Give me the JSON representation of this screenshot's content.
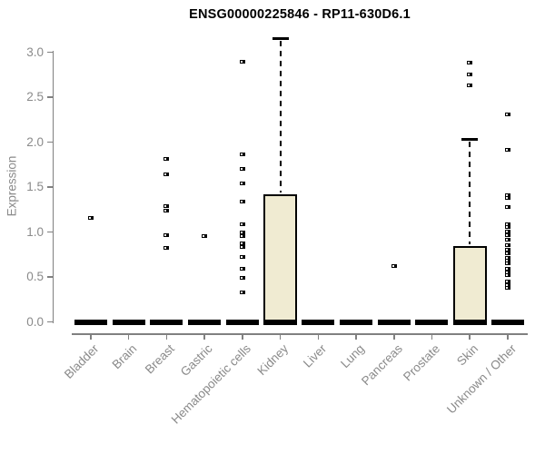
{
  "chart_data": {
    "type": "boxplot",
    "title": "ENSG00000225846 - RP11-630D6.1",
    "ylabel": "Expression",
    "xlabel": "",
    "ytick_labels": [
      "0.0",
      "0.5",
      "1.0",
      "1.5",
      "2.0",
      "2.5",
      "3.0"
    ],
    "ylim": [
      0.0,
      3.2
    ],
    "grid": false,
    "legend": false,
    "categories": [
      "Bladder",
      "Brain",
      "Breast",
      "Gastric",
      "Hematopoietic cells",
      "Kidney",
      "Liver",
      "Lung",
      "Pancreas",
      "Prostate",
      "Skin",
      "Unknown / Other"
    ],
    "series": [
      {
        "category": "Bladder",
        "q1": 0,
        "median": 0,
        "q3": 0,
        "whisker_low": 0,
        "whisker_high": 0,
        "outliers": [
          1.16
        ]
      },
      {
        "category": "Brain",
        "q1": 0,
        "median": 0,
        "q3": 0,
        "whisker_low": 0,
        "whisker_high": 0,
        "outliers": []
      },
      {
        "category": "Breast",
        "q1": 0,
        "median": 0,
        "q3": 0,
        "whisker_low": 0,
        "whisker_high": 0,
        "outliers": [
          1.81,
          1.64,
          1.29,
          1.24,
          0.96,
          0.82
        ]
      },
      {
        "category": "Gastric",
        "q1": 0,
        "median": 0,
        "q3": 0,
        "whisker_low": 0,
        "whisker_high": 0,
        "outliers": [
          0.95
        ]
      },
      {
        "category": "Hematopoietic cells",
        "q1": 0,
        "median": 0,
        "q3": 0,
        "whisker_low": 0,
        "whisker_high": 0,
        "outliers": [
          2.89,
          1.86,
          1.7,
          1.54,
          1.34,
          1.09,
          0.99,
          0.95,
          0.87,
          0.83,
          0.72,
          0.59,
          0.49,
          0.33
        ]
      },
      {
        "category": "Kidney",
        "q1": 0,
        "median": 0,
        "q3": 1.42,
        "whisker_low": 0,
        "whisker_high": 3.15,
        "outliers": []
      },
      {
        "category": "Liver",
        "q1": 0,
        "median": 0,
        "q3": 0,
        "whisker_low": 0,
        "whisker_high": 0,
        "outliers": []
      },
      {
        "category": "Lung",
        "q1": 0,
        "median": 0,
        "q3": 0,
        "whisker_low": 0,
        "whisker_high": 0,
        "outliers": []
      },
      {
        "category": "Pancreas",
        "q1": 0,
        "median": 0,
        "q3": 0,
        "whisker_low": 0,
        "whisker_high": 0,
        "outliers": [
          0.62
        ]
      },
      {
        "category": "Prostate",
        "q1": 0,
        "median": 0,
        "q3": 0,
        "whisker_low": 0,
        "whisker_high": 0,
        "outliers": []
      },
      {
        "category": "Skin",
        "q1": 0,
        "median": 0,
        "q3": 0.84,
        "whisker_low": 0,
        "whisker_high": 2.03,
        "outliers": [
          2.88,
          2.75,
          2.63
        ]
      },
      {
        "category": "Unknown / Other",
        "q1": 0,
        "median": 0,
        "q3": 0,
        "whisker_low": 0,
        "whisker_high": 0,
        "outliers": [
          2.31,
          1.91,
          1.41,
          1.38,
          1.28,
          1.09,
          1.06,
          1.01,
          0.96,
          0.91,
          0.85,
          0.8,
          0.76,
          0.71,
          0.68,
          0.65,
          0.59,
          0.55,
          0.52,
          0.45,
          0.41,
          0.38
        ]
      }
    ],
    "colors": {
      "box_fill": "#f0ebd2",
      "box_border": "#000000",
      "median": "#000000",
      "whisker": "#000000",
      "points": "#000000",
      "axis": "#808080",
      "tick_labels": "#8a8a8a",
      "title": "#000000",
      "background": "#ffffff"
    }
  }
}
